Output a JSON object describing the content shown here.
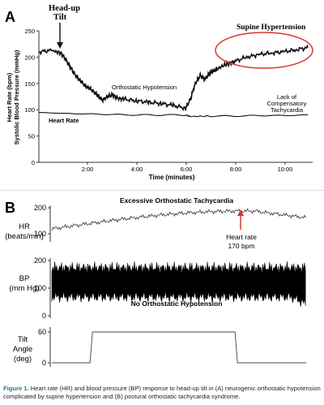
{
  "panel_a": {
    "letter": "A",
    "head_up_label_1": "Head-up",
    "head_up_label_2": "Tilt",
    "y_label_1": "Heart Rate (bpm)",
    "y_label_2": "Systolic Blood Pressure (mmHg)",
    "x_label": "Time (minutes)",
    "y_ticks": [
      "250",
      "200",
      "150",
      "100",
      "50",
      "0"
    ],
    "x_ticks": [
      "2:00",
      "4:00",
      "6:00",
      "8:00",
      "10:00"
    ],
    "annotation_orthostatic_hypotension": "Orthostatic Hypotension",
    "annotation_supine_hypertension": "Supine Hypertension",
    "annotation_lack_1": "Lack of",
    "annotation_lack_2": "Compensatory",
    "annotation_lack_3": "Tachycardia",
    "annotation_heart_rate": "Heart Rate",
    "highlight_color": "#d9372f"
  },
  "panel_b": {
    "letter": "B",
    "hr_label_1": "HR",
    "hr_label_2": "(beats/min)",
    "hr_ticks": [
      "200",
      "100"
    ],
    "bp_label_1": "BP",
    "bp_label_2": "(mm Hg)",
    "bp_ticks": [
      "200",
      "100",
      "0"
    ],
    "tilt_label_1": "Tilt",
    "tilt_label_2": "Angle",
    "tilt_label_3": "(deg)",
    "tilt_ticks": [
      "60",
      "0"
    ],
    "annotation_excessive": "Excessive Orthostatic Tachycardia",
    "annotation_hr_peak_1": "Heart rate",
    "annotation_hr_peak_2": "170 bpm",
    "annotation_no_oh": "No Orthostatic Hypotension",
    "arrow_color": "#d9372f"
  },
  "caption": {
    "label": "Figure 1.",
    "text": " Heart rate (HR) and blood pressure (BP) response to head-up tilt in (A) neurogenic orthostatic hypotension complicated by supine hypertension and (B) postural orthostatic tachycardia syndrome."
  },
  "chart_data": [
    {
      "type": "line",
      "title": "",
      "xlabel": "Time (minutes)",
      "ylabel": "Heart Rate (bpm) / Systolic Blood Pressure (mmHg)",
      "ylim": [
        0,
        250
      ],
      "xlim": [
        0,
        11.2
      ],
      "series": [
        {
          "name": "Systolic Blood Pressure",
          "x": [
            0,
            0.5,
            0.9,
            1.1,
            1.3,
            1.5,
            1.7,
            1.9,
            2.1,
            2.3,
            2.6,
            2.8,
            3.0,
            3.2,
            3.5,
            4.0,
            4.5,
            5.0,
            5.5,
            6.0,
            6.2,
            6.4,
            6.6,
            6.8,
            7.0,
            7.3,
            7.6,
            8.0,
            8.5,
            9.0,
            9.5,
            10.0,
            10.5,
            11.0
          ],
          "values": [
            210,
            213,
            208,
            195,
            180,
            165,
            155,
            145,
            140,
            132,
            118,
            125,
            128,
            122,
            120,
            117,
            114,
            112,
            108,
            103,
            120,
            150,
            165,
            158,
            170,
            178,
            185,
            192,
            200,
            205,
            208,
            210,
            214,
            218
          ]
        },
        {
          "name": "Heart Rate",
          "x": [
            0,
            1,
            2,
            3,
            4,
            5,
            6,
            6.2,
            7,
            8,
            9,
            10,
            11
          ],
          "values": [
            95,
            93,
            92,
            91,
            90,
            90,
            90,
            87,
            88,
            88,
            89,
            89,
            90
          ]
        }
      ]
    },
    {
      "type": "line",
      "title": "",
      "ylabel": "Tilt Angle (deg)",
      "series": [
        {
          "name": "Tilt Angle",
          "x": [
            0,
            0.15,
            0.16,
            0.72,
            0.73,
            1.0
          ],
          "values": [
            0,
            0,
            60,
            60,
            0,
            0
          ]
        }
      ]
    }
  ]
}
